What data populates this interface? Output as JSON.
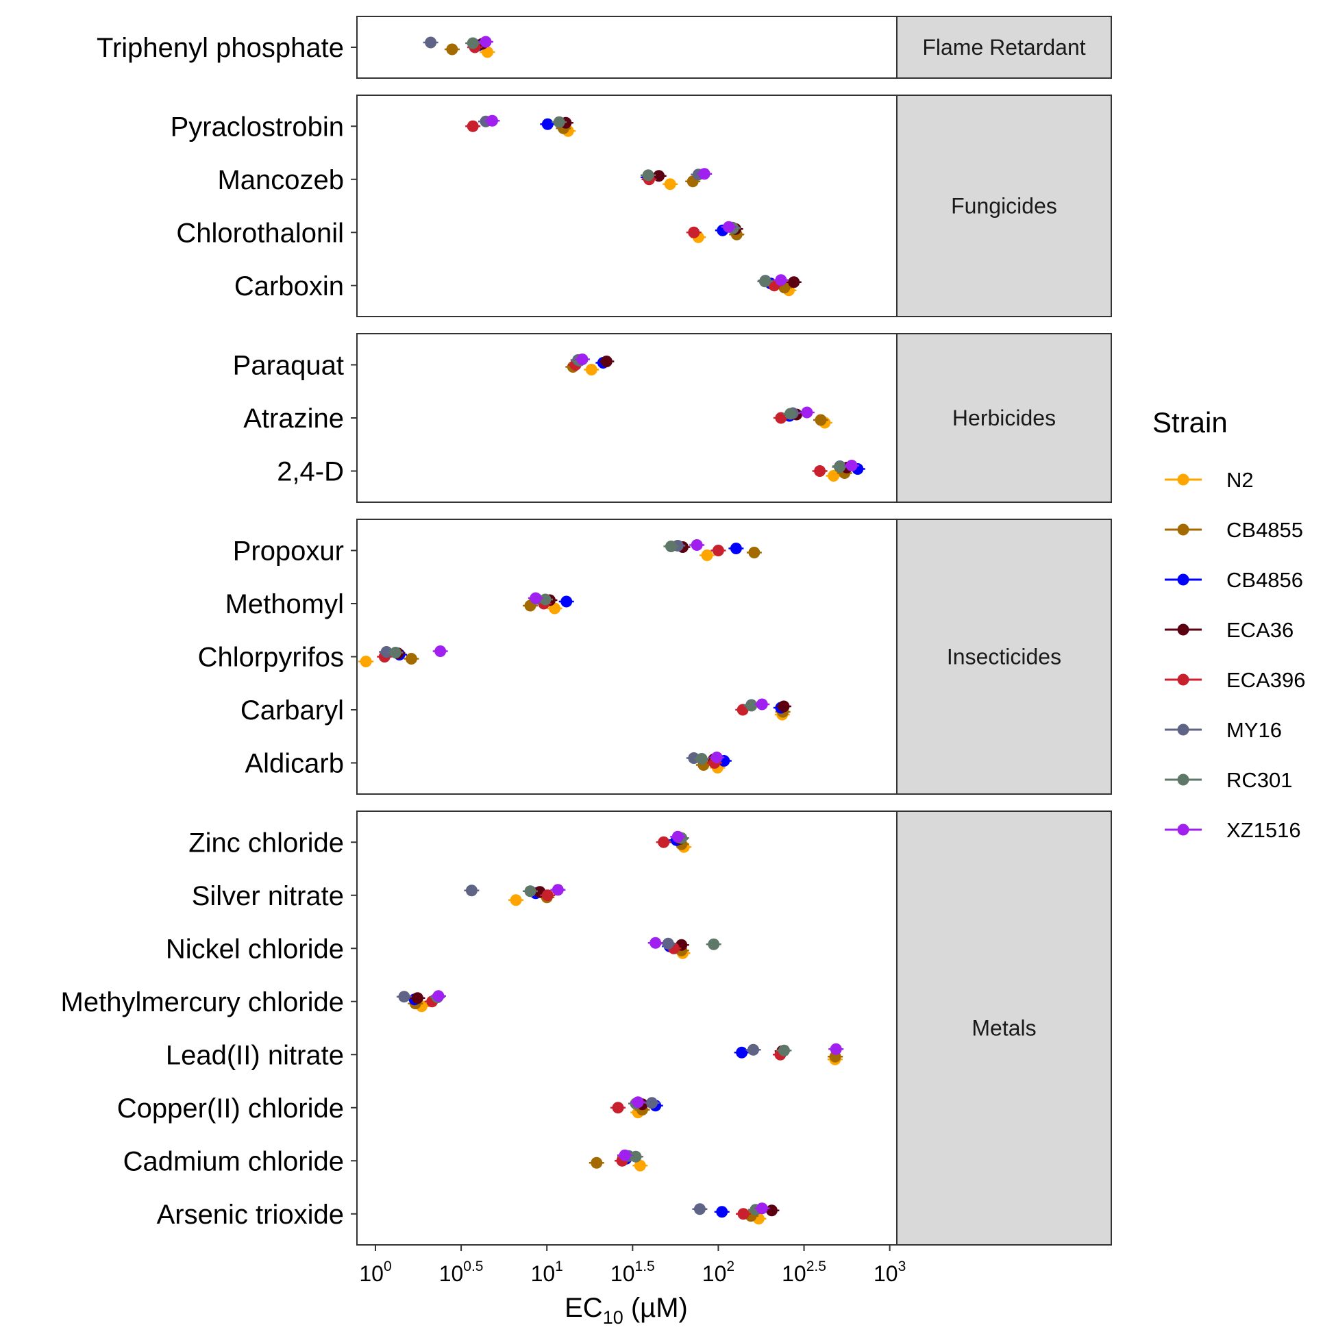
{
  "chart_data": {
    "type": "scatter",
    "xlabel": {
      "main": "EC",
      "sub": "10",
      "unit": " (µM)"
    },
    "x_scale": "log10",
    "xlim": [
      0.78,
      1100
    ],
    "x_ticks": [
      {
        "value": 1,
        "base": "10",
        "exp": "0"
      },
      {
        "value": 3.1623,
        "base": "10",
        "exp": "0.5"
      },
      {
        "value": 10,
        "base": "10",
        "exp": "1"
      },
      {
        "value": 31.623,
        "base": "10",
        "exp": "1.5"
      },
      {
        "value": 100,
        "base": "10",
        "exp": "2"
      },
      {
        "value": 316.23,
        "base": "10",
        "exp": "2.5"
      },
      {
        "value": 1000,
        "base": "10",
        "exp": "3"
      }
    ],
    "legend": {
      "title": "Strain",
      "position": "right"
    },
    "series": [
      {
        "name": "N2",
        "color": "#FFA500"
      },
      {
        "name": "CB4855",
        "color": "#A36A00"
      },
      {
        "name": "CB4856",
        "color": "#0000FF"
      },
      {
        "name": "ECA36",
        "color": "#5C0011"
      },
      {
        "name": "ECA396",
        "color": "#C8202C"
      },
      {
        "name": "MY16",
        "color": "#5F6385"
      },
      {
        "name": "RC301",
        "color": "#5F7768"
      },
      {
        "name": "XZ1516",
        "color": "#A020F0"
      }
    ],
    "panels": [
      {
        "group": "Flame Retardant",
        "compounds": [
          {
            "name": "Triphenyl phosphate",
            "values": [
              4.5,
              2.8,
              4.0,
              4.2,
              3.8,
              2.1,
              3.7,
              4.4
            ]
          }
        ]
      },
      {
        "group": "Fungicides",
        "compounds": [
          {
            "name": "Pyraclostrobin",
            "values": [
              13.3,
              12.5,
              10.1,
              12.9,
              3.7,
              4.4,
              11.8,
              4.8
            ]
          },
          {
            "name": "Mancozeb",
            "values": [
              52.4,
              71.0,
              39.0,
              45.0,
              39.5,
              76.5,
              39.0,
              83.0
            ]
          },
          {
            "name": "Chlorothalonil",
            "values": [
              76.5,
              128.0,
              106.0,
              126.0,
              72.0,
              121.0,
              122.0,
              115.0
            ]
          },
          {
            "name": "Carboxin",
            "values": [
              258.0,
              243.0,
              202.0,
              276.0,
              212.0,
              188.0,
              187.0,
              232.0
            ]
          }
        ]
      },
      {
        "group": "Herbicides",
        "compounds": [
          {
            "name": "Paraquat",
            "values": [
              18.2,
              14.2,
              21.3,
              22.3,
              14.7,
              15.2,
              15.5,
              16.1
            ]
          },
          {
            "name": "Atrazine",
            "values": [
              418.0,
              396.0,
              260.0,
              286.0,
              232.0,
              272.0,
              263.0,
              329.0
            ]
          },
          {
            "name": "2,4-D",
            "values": [
              470.0,
              545.0,
              650.0,
              562.0,
              391.0,
              512.0,
              510.0,
              600.0
            ]
          }
        ]
      },
      {
        "group": "Insecticides",
        "compounds": [
          {
            "name": "Propoxur",
            "values": [
              86.0,
              162.0,
              127.0,
              62.0,
              100.0,
              58.0,
              53.0,
              75.0
            ]
          },
          {
            "name": "Methomyl",
            "values": [
              11.1,
              8.0,
              13.0,
              10.4,
              9.6,
              8.7,
              9.8,
              8.6
            ]
          },
          {
            "name": "Chlorpyrifos",
            "values": [
              0.88,
              1.62,
              1.38,
              1.35,
              1.13,
              1.16,
              1.31,
              2.39
            ]
          },
          {
            "name": "Carbaryl",
            "values": [
              236.0,
              238.0,
              232.0,
              241.0,
              139.0,
              156.0,
              156.0,
              180.0
            ]
          },
          {
            "name": "Aldicarb",
            "values": [
              99.0,
              82.0,
              108.0,
              94.0,
              95.0,
              72.0,
              80.0,
              98.0
            ]
          }
        ]
      },
      {
        "group": "Metals",
        "compounds": [
          {
            "name": "Zinc chloride",
            "values": [
              63.0,
              61.0,
              57.0,
              60.0,
              48.0,
              59.0,
              61.0,
              58.0
            ]
          },
          {
            "name": "Silver nitrate",
            "values": [
              6.6,
              10.0,
              8.6,
              9.1,
              10.1,
              3.64,
              8.0,
              11.6
            ]
          },
          {
            "name": "Nickel chloride",
            "values": [
              62.0,
              61.0,
              52.0,
              61.0,
              55.0,
              51.0,
              94.0,
              43.0
            ]
          },
          {
            "name": "Methylmercury chloride",
            "values": [
              1.86,
              1.71,
              1.69,
              1.76,
              2.14,
              1.47,
              2.3,
              2.33
            ]
          },
          {
            "name": "Lead(II) nitrate",
            "values": [
              480.0,
              481.0,
              137.0,
              236.0,
              230.0,
              160.0,
              242.0,
              486.0
            ]
          },
          {
            "name": "Copper(II) chloride",
            "values": [
              34.0,
              36.0,
              43.0,
              36.0,
              26.0,
              41.0,
              33.0,
              34.0
            ]
          },
          {
            "name": "Cadmium chloride",
            "values": [
              35.0,
              19.5,
              29.0,
              28.5,
              27.5,
              30.0,
              33.0,
              28.5
            ]
          },
          {
            "name": "Arsenic trioxide",
            "values": [
              172.0,
              155.0,
              105.0,
              205.0,
              140.0,
              78.0,
              165.0,
              180.0
            ]
          }
        ]
      }
    ]
  }
}
